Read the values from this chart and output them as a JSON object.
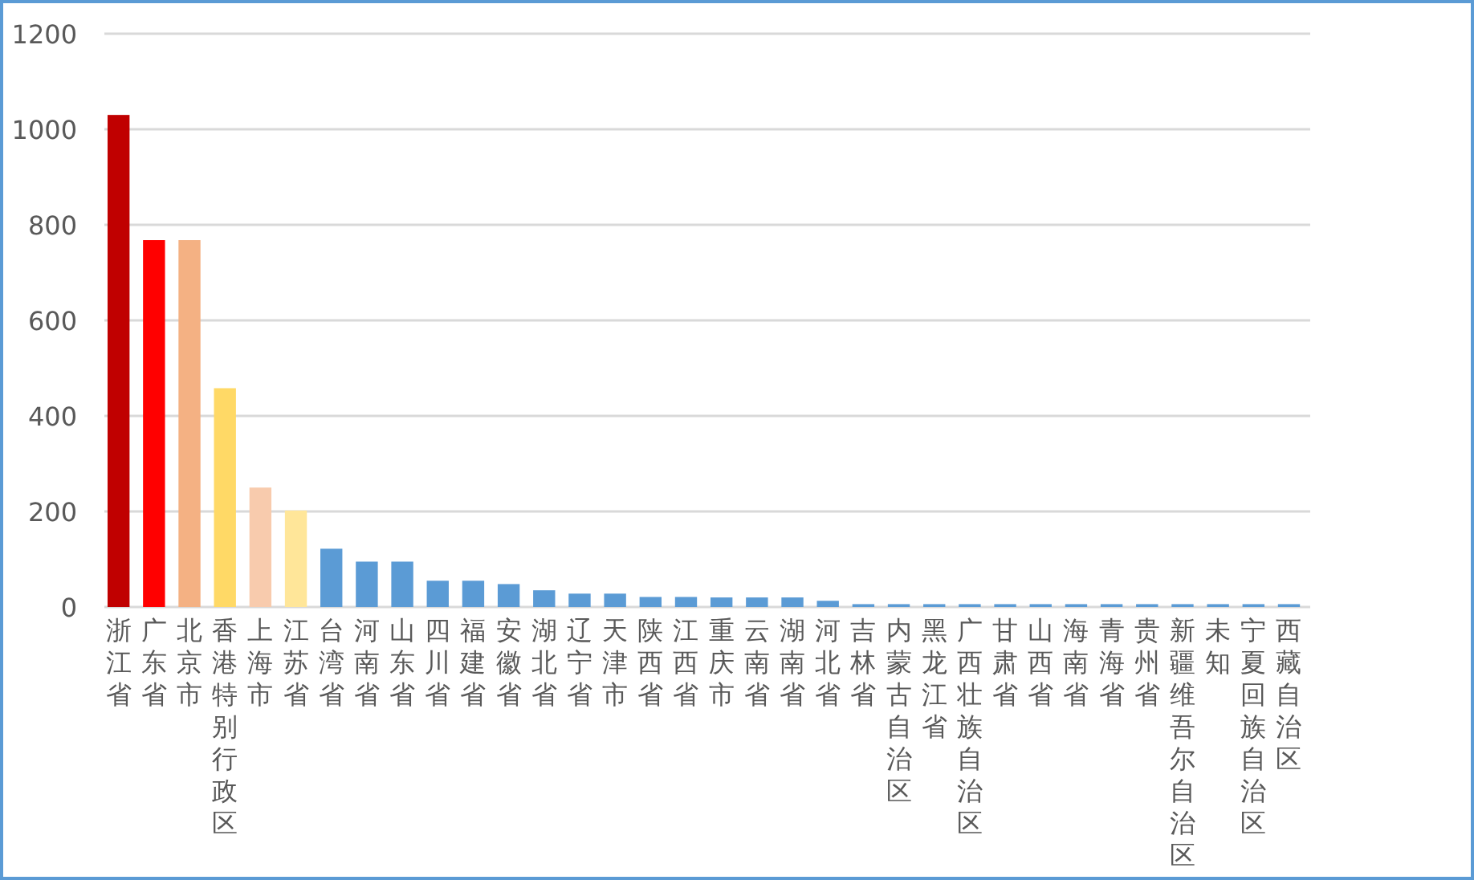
{
  "chart_data": {
    "type": "bar",
    "categories": [
      "浙江省",
      "广东省",
      "北京市",
      "香港特别行政区",
      "上海市",
      "江苏省",
      "台湾省",
      "河南省",
      "山东省",
      "四川省",
      "福建省",
      "安徽省",
      "湖北省",
      "辽宁省",
      "天津市",
      "陕西省",
      "江西省",
      "重庆市",
      "云南省",
      "湖南省",
      "河北省",
      "吉林省",
      "内蒙古自治区",
      "黑龙江省",
      "广西壮族自治区",
      "甘肃省",
      "山西省",
      "海南省",
      "青海省",
      "贵州省",
      "新疆维吾尔自治区",
      "未知",
      "宁夏回族自治区",
      "西藏自治区"
    ],
    "values": [
      1030,
      768,
      768,
      458,
      250,
      202,
      122,
      95,
      95,
      55,
      55,
      48,
      35,
      28,
      28,
      21,
      21,
      20,
      20,
      20,
      13,
      6,
      6,
      6,
      6,
      6,
      6,
      6,
      6,
      6,
      6,
      6,
      6,
      6
    ],
    "colors": [
      "#c00000",
      "#ff0000",
      "#f4b183",
      "#ffd966",
      "#f8cbad",
      "#ffe699",
      "#5b9bd5",
      "#5b9bd5",
      "#5b9bd5",
      "#5b9bd5",
      "#5b9bd5",
      "#5b9bd5",
      "#5b9bd5",
      "#5b9bd5",
      "#5b9bd5",
      "#5b9bd5",
      "#5b9bd5",
      "#5b9bd5",
      "#5b9bd5",
      "#5b9bd5",
      "#5b9bd5",
      "#5b9bd5",
      "#5b9bd5",
      "#5b9bd5",
      "#5b9bd5",
      "#5b9bd5",
      "#5b9bd5",
      "#5b9bd5",
      "#5b9bd5",
      "#5b9bd5",
      "#5b9bd5",
      "#5b9bd5",
      "#5b9bd5",
      "#5b9bd5"
    ],
    "ylim": [
      0,
      1200
    ],
    "yticks": [
      0,
      200,
      400,
      600,
      800,
      1000,
      1200
    ],
    "grid": "y"
  }
}
